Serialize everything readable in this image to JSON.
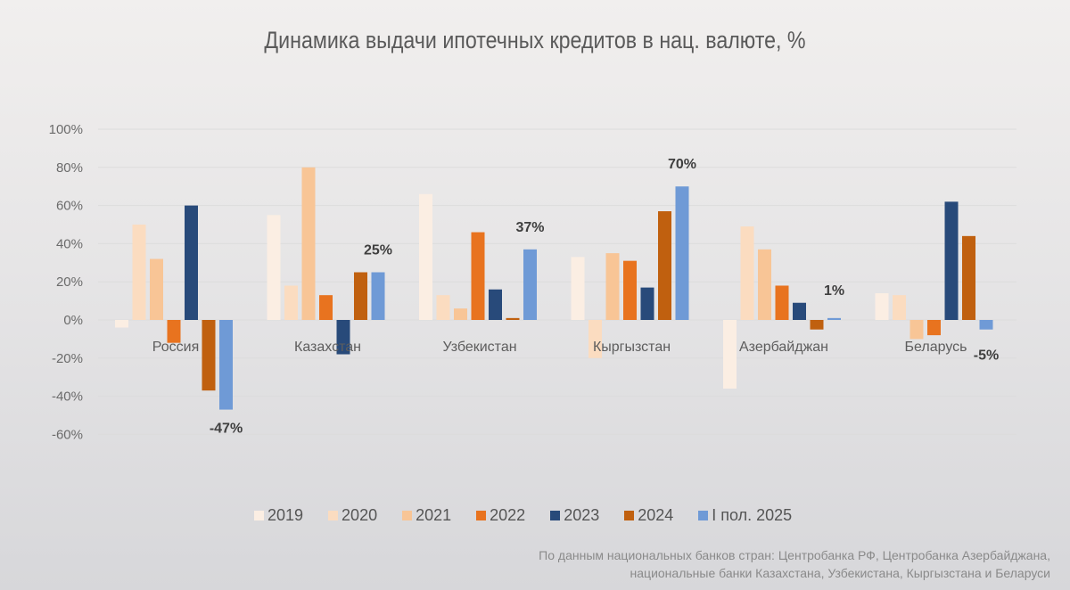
{
  "chart_data": {
    "type": "bar",
    "title": "Динамика выдачи ипотечных кредитов в нац. валюте, %",
    "xlabel": "",
    "ylabel": "",
    "ylim": [
      -60,
      100
    ],
    "yticks": [
      "100%",
      "80%",
      "60%",
      "40%",
      "20%",
      "0%",
      "-20%",
      "-40%",
      "-60%"
    ],
    "ytick_values": [
      100,
      80,
      60,
      40,
      20,
      0,
      -20,
      -40,
      -60
    ],
    "grid": true,
    "legend_position": "bottom",
    "categories": [
      "Россия",
      "Казахстан",
      "Узбекистан",
      "Кыргызстан",
      "Азербайджан",
      "Беларусь"
    ],
    "series": [
      {
        "name": "2019",
        "color": "#fbeee3",
        "values": [
          -4,
          55,
          66,
          33,
          -36,
          14
        ]
      },
      {
        "name": "2020",
        "color": "#fbdcc0",
        "values": [
          50,
          18,
          13,
          -20,
          49,
          13
        ]
      },
      {
        "name": "2021",
        "color": "#f8c596",
        "values": [
          32,
          80,
          6,
          35,
          37,
          -10
        ]
      },
      {
        "name": "2022",
        "color": "#e8731f",
        "values": [
          -12,
          13,
          46,
          31,
          18,
          -8
        ]
      },
      {
        "name": "2023",
        "color": "#284a7a",
        "values": [
          60,
          -18,
          16,
          17,
          9,
          62
        ]
      },
      {
        "name": "2024",
        "color": "#c0600f",
        "values": [
          -37,
          25,
          1,
          57,
          -5,
          44
        ]
      },
      {
        "name": "I пол. 2025",
        "color": "#6f9ad6",
        "values": [
          -47,
          25,
          37,
          70,
          1,
          -5
        ]
      }
    ],
    "data_labels": [
      {
        "series": "I пол. 2025",
        "category": "Россия",
        "text": "-47%"
      },
      {
        "series": "I пол. 2025",
        "category": "Казахстан",
        "text": "25%"
      },
      {
        "series": "I пол. 2025",
        "category": "Узбекистан",
        "text": "37%"
      },
      {
        "series": "I пол. 2025",
        "category": "Кыргызстан",
        "text": "70%"
      },
      {
        "series": "I пол. 2025",
        "category": "Азербайджан",
        "text": "1%"
      },
      {
        "series": "I пол. 2025",
        "category": "Беларусь",
        "text": "-5%"
      }
    ]
  },
  "source": {
    "line1": "По данным национальных банков стран: Центробанка РФ, Центробанка Азербайджана,",
    "line2": "национальные банки Казахстана, Узбекистана, Кыргызстана и Беларуси"
  }
}
